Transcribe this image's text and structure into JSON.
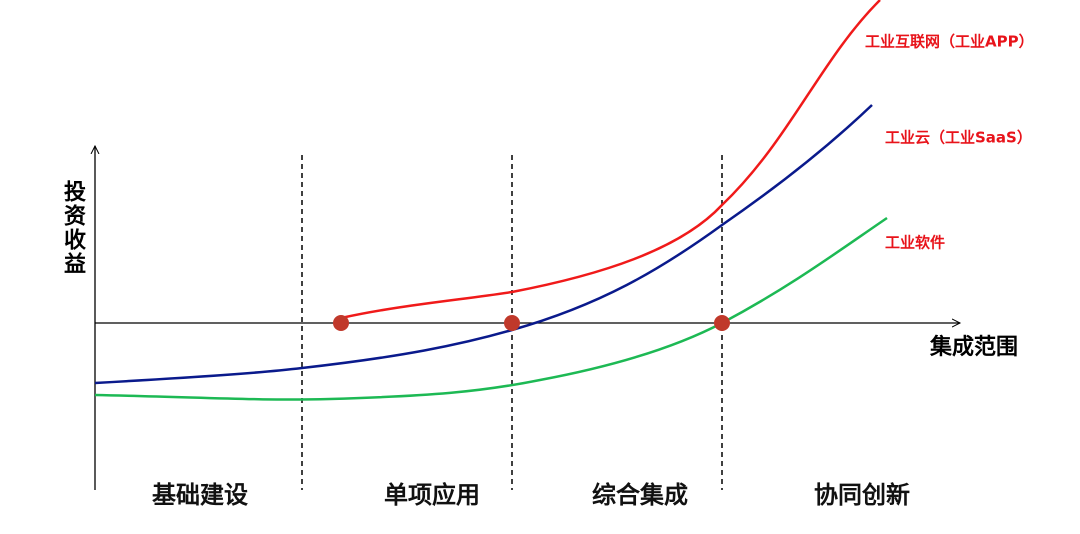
{
  "axes": {
    "y_label": "投资收益",
    "x_label": "集成范围"
  },
  "curves": [
    {
      "label": "工业互联网（工业APP）"
    },
    {
      "label": "工业云（工业SaaS）"
    },
    {
      "label": "工业软件"
    }
  ],
  "stages": [
    "基础建设",
    "单项应用",
    "综合集成",
    "协同创新"
  ]
}
